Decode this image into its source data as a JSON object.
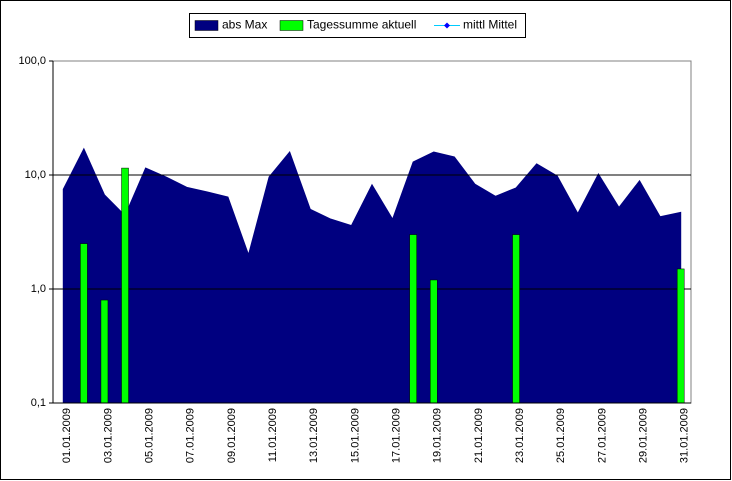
{
  "chart_data": {
    "type": "area_bar",
    "categories": [
      "01.01.2009",
      null,
      "03.01.2009",
      null,
      "05.01.2009",
      null,
      "07.01.2009",
      null,
      "09.01.2009",
      null,
      "11.01.2009",
      null,
      "13.01.2009",
      null,
      "15.01.2009",
      null,
      "17.01.2009",
      null,
      "19.01.2009",
      null,
      "21.01.2009",
      null,
      "23.01.2009",
      null,
      "25.01.2009",
      null,
      "27.01.2009",
      null,
      "29.01.2009",
      null,
      "31.01.2009"
    ],
    "series": [
      {
        "name": "abs Max",
        "color": "#000080",
        "kind": "area",
        "values": [
          7.5,
          17,
          6.7,
          4.4,
          11.5,
          9.6,
          7.8,
          7.1,
          6.4,
          2.0,
          9.6,
          15.9,
          5.0,
          4.1,
          3.6,
          8.2,
          4.1,
          13.0,
          15.9,
          14.4,
          8.3,
          6.5,
          7.7,
          12.5,
          9.8,
          4.6,
          10.2,
          5.2,
          8.9,
          4.3,
          4.7
        ]
      },
      {
        "name": "Tagessumme aktuell",
        "color": "#00ff00",
        "kind": "bar",
        "values": [
          null,
          2.5,
          0.8,
          11.5,
          null,
          null,
          null,
          null,
          null,
          null,
          null,
          null,
          null,
          null,
          null,
          null,
          null,
          3.0,
          1.2,
          null,
          null,
          null,
          3.0,
          null,
          null,
          null,
          null,
          null,
          null,
          null,
          1.5
        ]
      },
      {
        "name": "mittl Mittel",
        "color": "#00ccff",
        "kind": "line",
        "values": [
          null,
          null,
          null,
          null,
          null,
          null,
          null,
          null,
          null,
          null,
          null,
          null,
          null,
          null,
          null,
          null,
          null,
          null,
          null,
          null,
          null,
          null,
          null,
          null,
          null,
          null,
          null,
          null,
          null,
          null,
          null
        ]
      }
    ],
    "ylim": [
      0.1,
      100
    ],
    "yticks": [
      {
        "value": 0.1,
        "label": "0,1"
      },
      {
        "value": 1,
        "label": "1,0"
      },
      {
        "value": 10,
        "label": "10,0"
      },
      {
        "value": 100,
        "label": "100,0"
      }
    ],
    "log_scale": true,
    "grid": true,
    "legend": "top"
  }
}
